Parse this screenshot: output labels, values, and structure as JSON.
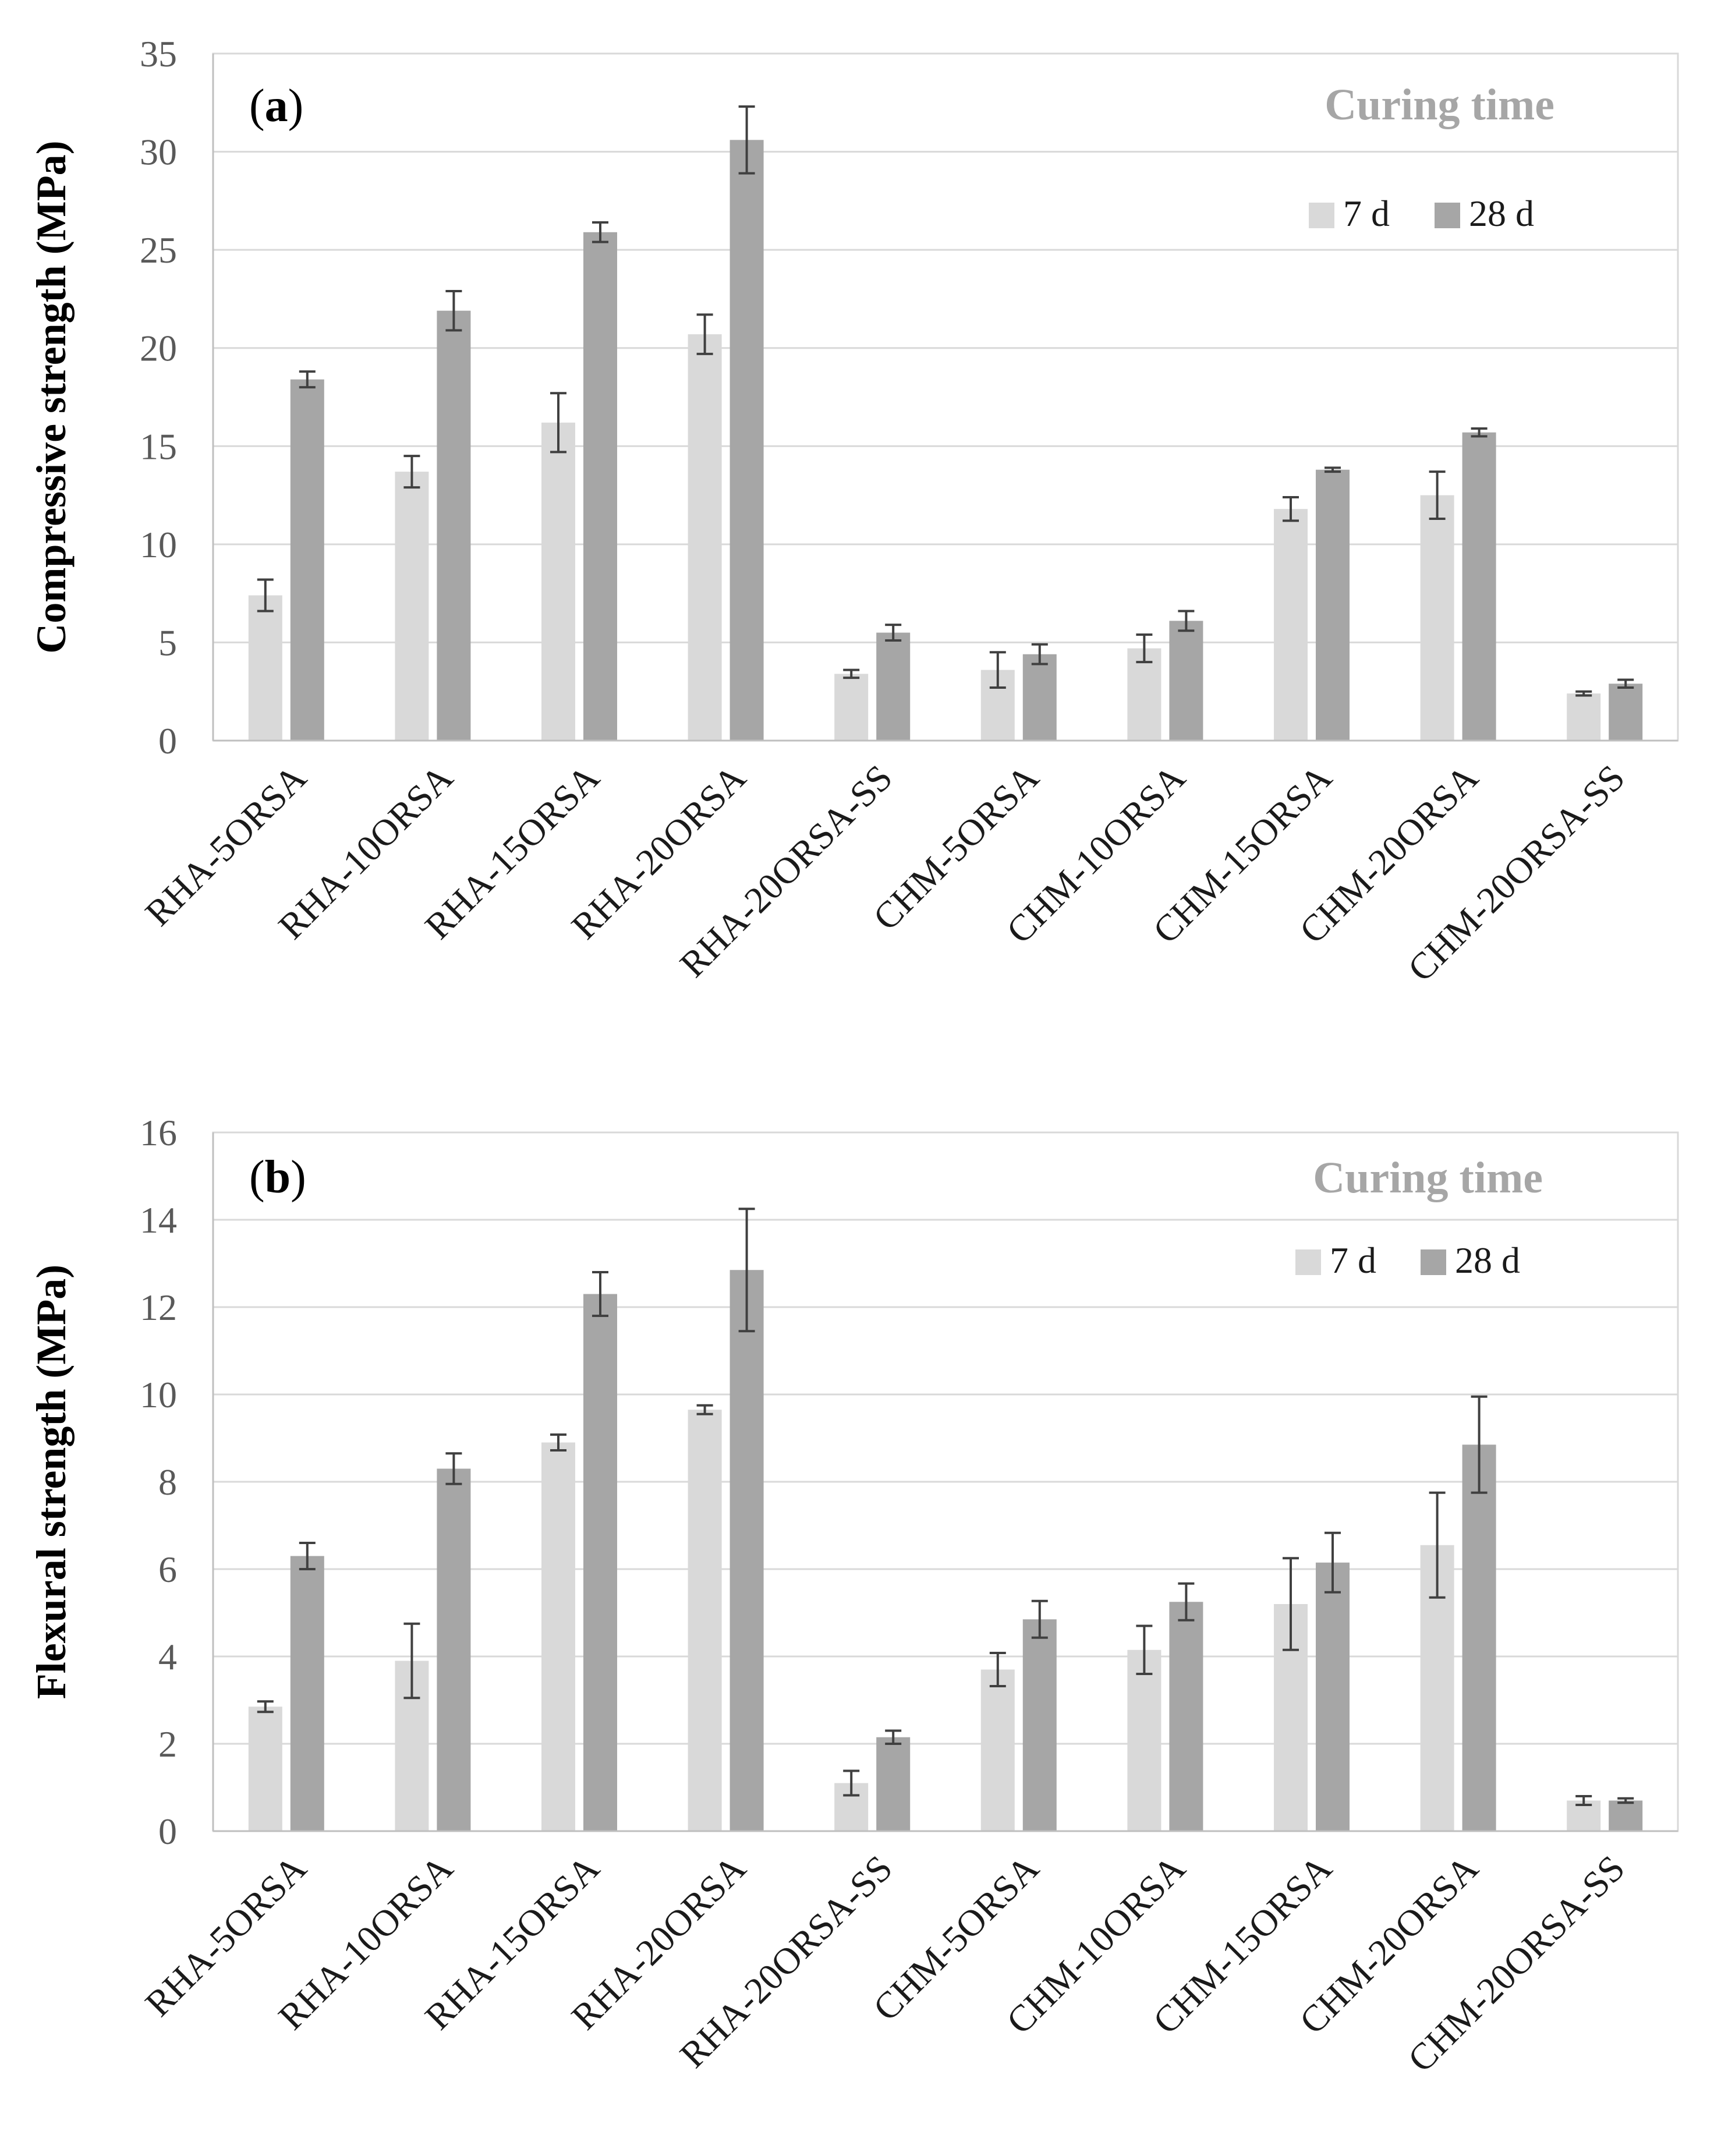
{
  "chart_data": [
    {
      "type": "bar",
      "panel_label": {
        "open": "(",
        "letter": "a",
        "close": ")"
      },
      "ylabel": "Compressive strength (MPa)",
      "xlabel": "",
      "ylim": [
        0,
        35
      ],
      "ytick_step": 5,
      "grid": true,
      "legend": {
        "title": "Curing time",
        "placement": "top-right"
      },
      "categories": [
        "RHA-5ORSA",
        "RHA-10ORSA",
        "RHA-15ORSA",
        "RHA-20ORSA",
        "RHA-20ORSA-SS",
        "CHM-5ORSA",
        "CHM-10ORSA",
        "CHM-15ORSA",
        "CHM-20ORSA",
        "CHM-20ORSA-SS"
      ],
      "series": [
        {
          "name": "7 d",
          "color": "#d9d9d9",
          "values": [
            7.4,
            13.7,
            16.2,
            20.7,
            3.4,
            3.6,
            4.7,
            11.8,
            12.5,
            2.4
          ],
          "errors": [
            0.8,
            0.8,
            1.5,
            1.0,
            0.2,
            0.9,
            0.7,
            0.6,
            1.2,
            0.1
          ]
        },
        {
          "name": "28 d",
          "color": "#a6a6a6",
          "values": [
            18.4,
            21.9,
            25.9,
            30.6,
            5.5,
            4.4,
            6.1,
            13.8,
            15.7,
            2.9
          ],
          "errors": [
            0.4,
            1.0,
            0.5,
            1.7,
            0.4,
            0.5,
            0.5,
            0.1,
            0.2,
            0.2
          ]
        }
      ]
    },
    {
      "type": "bar",
      "panel_label": {
        "open": "(",
        "letter": "b",
        "close": ")"
      },
      "ylabel": "Flexural strength (MPa)",
      "xlabel": "",
      "ylim": [
        0,
        16
      ],
      "ytick_step": 2,
      "grid": true,
      "legend": {
        "title": "Curing time",
        "placement": "top-right"
      },
      "categories": [
        "RHA-5ORSA",
        "RHA-10ORSA",
        "RHA-15ORSA",
        "RHA-20ORSA",
        "RHA-20ORSA-SS",
        "CHM-5ORSA",
        "CHM-10ORSA",
        "CHM-15ORSA",
        "CHM-20ORSA",
        "CHM-20ORSA-SS"
      ],
      "series": [
        {
          "name": "7 d",
          "color": "#d9d9d9",
          "values": [
            2.85,
            3.9,
            8.9,
            9.65,
            1.1,
            3.7,
            4.15,
            5.2,
            6.55,
            0.7
          ],
          "errors": [
            0.12,
            0.85,
            0.18,
            0.1,
            0.28,
            0.38,
            0.55,
            1.05,
            1.2,
            0.1
          ]
        },
        {
          "name": "28 d",
          "color": "#a6a6a6",
          "values": [
            6.3,
            8.3,
            12.3,
            12.85,
            2.15,
            4.85,
            5.25,
            6.15,
            8.85,
            0.7
          ],
          "errors": [
            0.3,
            0.35,
            0.5,
            1.4,
            0.15,
            0.42,
            0.42,
            0.68,
            1.1,
            0.05
          ]
        }
      ]
    }
  ]
}
